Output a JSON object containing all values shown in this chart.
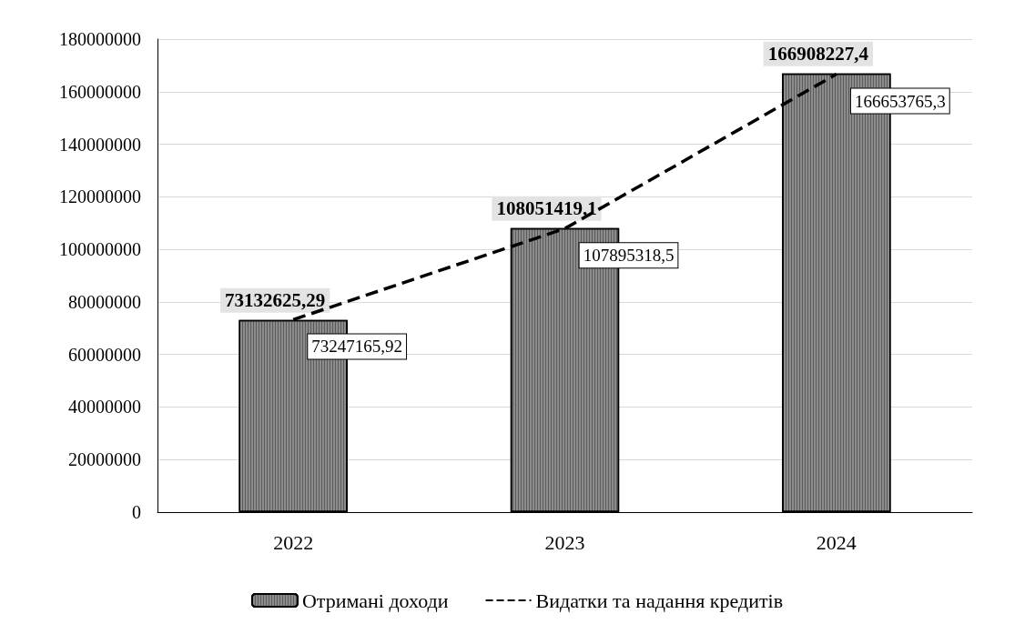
{
  "chart_data": {
    "type": "bar",
    "categories": [
      "2022",
      "2023",
      "2024"
    ],
    "series": [
      {
        "name": "Отримані доходи",
        "color": "#8c8c8c",
        "values": [
          73132625.29,
          108051419.1,
          166908227.4
        ],
        "value_labels": [
          "73132625,29",
          "108051419,1",
          "166908227,4"
        ]
      },
      {
        "name": "Видатки та надання кредитів",
        "type": "line",
        "color": "#000000",
        "line_style": "dashed",
        "marker": "none",
        "values": [
          73247165.92,
          107895318.5,
          166653765.3
        ],
        "value_labels": [
          "73247165,92",
          "107895318,5",
          "166653765,3"
        ]
      }
    ],
    "ylim": [
      0,
      180000000
    ],
    "yticks": [
      0,
      20000000,
      40000000,
      60000000,
      80000000,
      100000000,
      120000000,
      140000000,
      160000000,
      180000000
    ],
    "grid": "y",
    "legend": "bottom"
  }
}
